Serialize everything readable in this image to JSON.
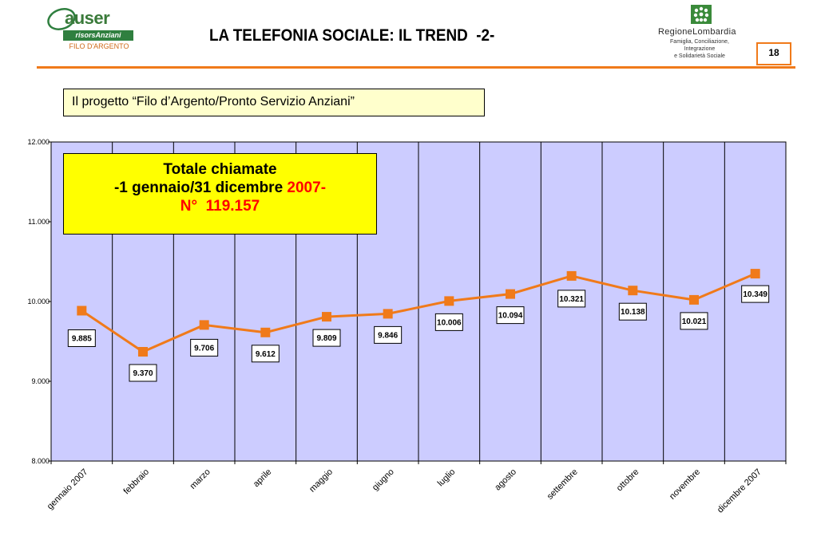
{
  "header": {
    "title": "LA TELEFONIA SOCIALE: IL TREND  -2-",
    "page_number": "18",
    "accent_color": "#f07a1a"
  },
  "logo_left": {
    "word": "auser",
    "band": "risorsAnziani",
    "sub": "FILO D'ARGENTO",
    "color": "#2f7f3f"
  },
  "logo_right": {
    "name": "RegioneLombardia",
    "sub_lines": [
      "Famiglia, Conciliazione,",
      "Integrazione",
      "e Solidarietà Sociale"
    ],
    "color": "#3a8a3a"
  },
  "subtitle": "Il progetto “Filo d’Argento/Pronto Servizio Anziani”",
  "total_box": {
    "line1": "Totale chiamate",
    "line2_black": "-1 gennaio/31 dicembre ",
    "line2_red": "2007-",
    "line3": "N°  119.157"
  },
  "chart_data": {
    "type": "line",
    "categories": [
      "gennaio 2007",
      "febbraio",
      "marzo",
      "aprile",
      "maggio",
      "giugno",
      "luglio",
      "agosto",
      "settembre",
      "ottobre",
      "novembre",
      "dicembre 2007"
    ],
    "values": [
      9885,
      9370,
      9706,
      9612,
      9809,
      9846,
      10006,
      10094,
      10321,
      10138,
      10021,
      10349
    ],
    "data_labels": [
      "9.885",
      "9.370",
      "9.706",
      "9.612",
      "9.809",
      "9.846",
      "10.006",
      "10.094",
      "10.321",
      "10.138",
      "10.021",
      "10.349"
    ],
    "y_ticks": [
      8000,
      9000,
      10000,
      11000,
      12000
    ],
    "y_tick_labels": [
      "8.000",
      "9.000",
      "10.000",
      "11.000",
      "12.000"
    ],
    "ylim": [
      8000,
      12000
    ],
    "title": "",
    "xlabel": "",
    "ylabel": "",
    "grid": "vertical",
    "line_color": "#f07a1a",
    "marker_color": "#f07a1a",
    "plot_background": "#ccccff"
  }
}
